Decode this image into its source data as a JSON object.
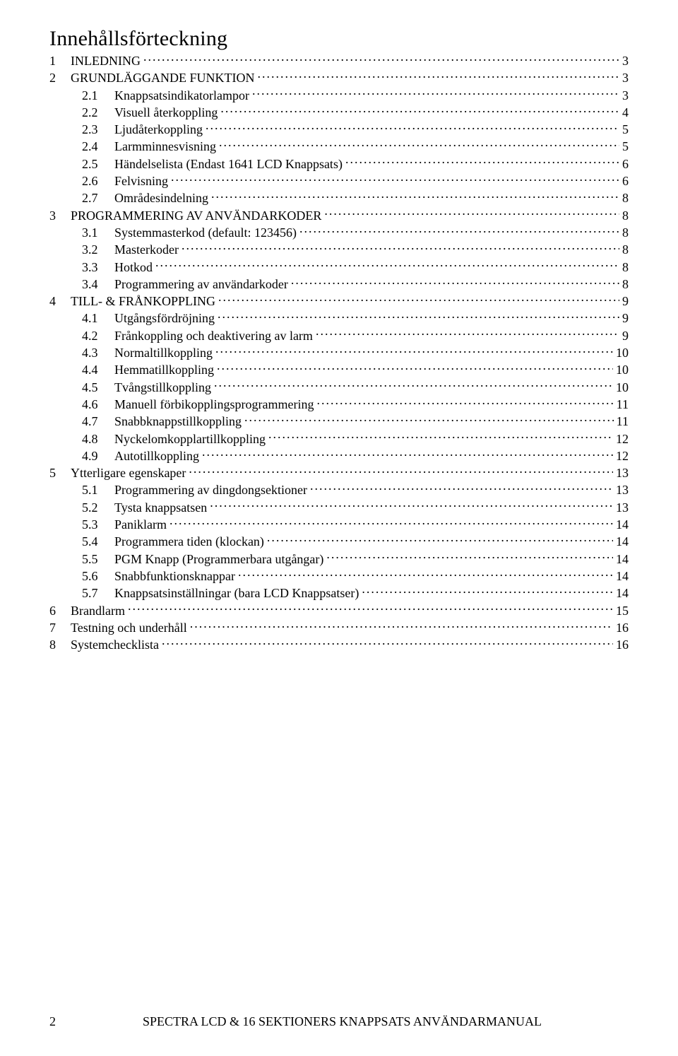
{
  "title": "Innehållsförteckning",
  "footer": {
    "page_number": "2",
    "doc_title": "SPECTRA LCD & 16 SEKTIONERS KNAPPSATS ANVÄNDARMANUAL"
  },
  "entries": [
    {
      "level": 1,
      "num": "1",
      "label": "INLEDNING",
      "page": "3"
    },
    {
      "level": 1,
      "num": "2",
      "label": "GRUNDLÄGGANDE FUNKTION",
      "page": "3"
    },
    {
      "level": 2,
      "num": "2.1",
      "label": "Knappsatsindikatorlampor",
      "page": "3"
    },
    {
      "level": 2,
      "num": "2.2",
      "label": "Visuell återkoppling",
      "page": "4"
    },
    {
      "level": 2,
      "num": "2.3",
      "label": "Ljudåterkoppling",
      "page": "5"
    },
    {
      "level": 2,
      "num": "2.4",
      "label": "Larmminnesvisning",
      "page": "5"
    },
    {
      "level": 2,
      "num": "2.5",
      "label": "Händelselista (Endast 1641 LCD Knappsats)",
      "page": "6"
    },
    {
      "level": 2,
      "num": "2.6",
      "label": "Felvisning",
      "page": "6"
    },
    {
      "level": 2,
      "num": "2.7",
      "label": "Områdesindelning",
      "page": "8"
    },
    {
      "level": 1,
      "num": "3",
      "label": "PROGRAMMERING AV ANVÄNDARKODER",
      "page": "8"
    },
    {
      "level": 2,
      "num": "3.1",
      "label": "Systemmasterkod (default: 123456)",
      "page": "8"
    },
    {
      "level": 2,
      "num": "3.2",
      "label": "Masterkoder",
      "page": "8"
    },
    {
      "level": 2,
      "num": "3.3",
      "label": "Hotkod",
      "page": "8"
    },
    {
      "level": 2,
      "num": "3.4",
      "label": "Programmering av användarkoder",
      "page": "8"
    },
    {
      "level": 1,
      "num": "4",
      "label": "TILL- & FRÅNKOPPLING",
      "page": "9"
    },
    {
      "level": 2,
      "num": "4.1",
      "label": "Utgångsfördröjning",
      "page": "9"
    },
    {
      "level": 2,
      "num": "4.2",
      "label": "Frånkoppling och deaktivering av larm",
      "page": "9"
    },
    {
      "level": 2,
      "num": "4.3",
      "label": "Normaltillkoppling",
      "page": "10"
    },
    {
      "level": 2,
      "num": "4.4",
      "label": "Hemmatillkoppling",
      "page": "10"
    },
    {
      "level": 2,
      "num": "4.5",
      "label": "Tvångstillkoppling",
      "page": "10"
    },
    {
      "level": 2,
      "num": "4.6",
      "label": "Manuell förbikopplingsprogrammering",
      "page": "11"
    },
    {
      "level": 2,
      "num": "4.7",
      "label": "Snabbknappstillkoppling",
      "page": "11"
    },
    {
      "level": 2,
      "num": "4.8",
      "label": "Nyckelomkopplartillkoppling",
      "page": "12"
    },
    {
      "level": 2,
      "num": "4.9",
      "label": "Autotillkoppling",
      "page": "12"
    },
    {
      "level": 1,
      "num": "5",
      "label": "Ytterligare egenskaper",
      "page": "13"
    },
    {
      "level": 2,
      "num": "5.1",
      "label": "Programmering av dingdongsektioner",
      "page": "13"
    },
    {
      "level": 2,
      "num": "5.2",
      "label": "Tysta knappsatsen",
      "page": "13"
    },
    {
      "level": 2,
      "num": "5.3",
      "label": "Paniklarm",
      "page": "14"
    },
    {
      "level": 2,
      "num": "5.4",
      "label": "Programmera tiden (klockan)",
      "page": "14"
    },
    {
      "level": 2,
      "num": "5.5",
      "label": "PGM Knapp (Programmerbara utgångar)",
      "page": "14"
    },
    {
      "level": 2,
      "num": "5.6",
      "label": "Snabbfunktionsknappar",
      "page": "14"
    },
    {
      "level": 2,
      "num": "5.7",
      "label": "Knappsatsinställningar (bara LCD Knappsatser)",
      "page": "14"
    },
    {
      "level": 1,
      "num": "6",
      "label": "Brandlarm",
      "page": "15"
    },
    {
      "level": 1,
      "num": "7",
      "label": "Testning och underhåll",
      "page": "16"
    },
    {
      "level": 1,
      "num": "8",
      "label": "Systemchecklista",
      "page": "16"
    }
  ]
}
